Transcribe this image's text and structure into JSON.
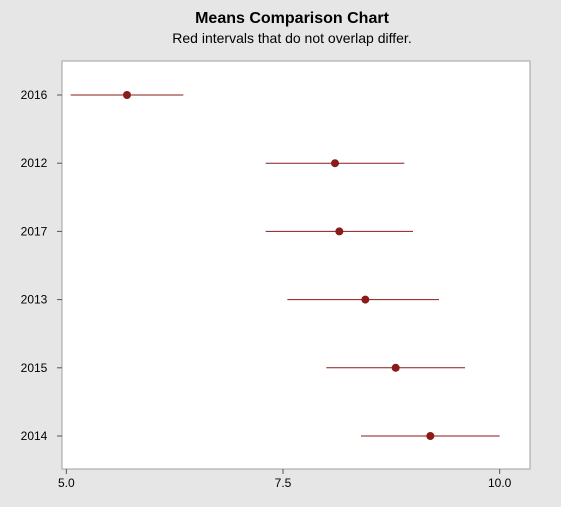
{
  "chart_data": {
    "type": "interval",
    "title": "Means Comparison Chart",
    "subtitle": "Red intervals that do not overlap differ.",
    "xlabel": "",
    "ylabel": "",
    "xlim": [
      4.95,
      10.35
    ],
    "xticks": [
      5.0,
      7.5,
      10.0
    ],
    "xtick_labels": [
      "5.0",
      "7.5",
      "10.0"
    ],
    "grid": false,
    "categories": [
      "2016",
      "2012",
      "2017",
      "2013",
      "2015",
      "2014"
    ],
    "means": [
      5.7,
      8.1,
      8.15,
      8.45,
      8.8,
      9.2
    ],
    "lower": [
      5.05,
      7.3,
      7.3,
      7.55,
      8.0,
      8.4
    ],
    "upper": [
      6.35,
      8.9,
      9.0,
      9.3,
      9.6,
      10.0
    ],
    "interval_color": "#8b1a1a",
    "point_color": "#8b1a1a",
    "background_color": "#e6e6e6",
    "plot_background_color": "#ffffff"
  }
}
